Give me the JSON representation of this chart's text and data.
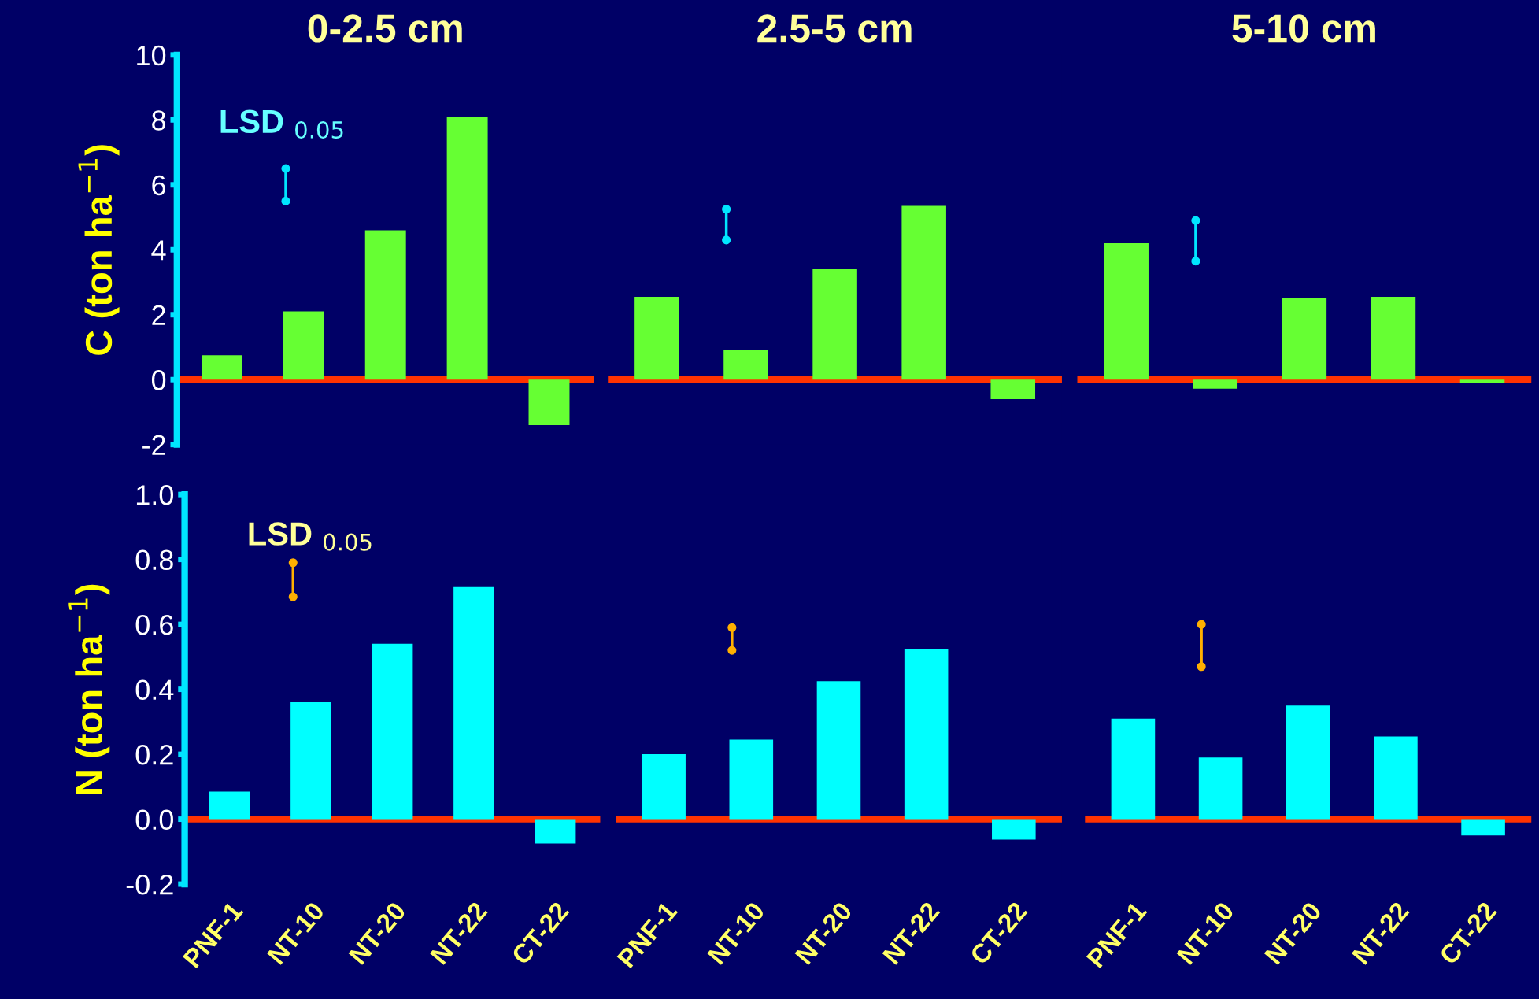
{
  "chart_data": [
    {
      "type": "bar",
      "title": "0-2.5 cm",
      "ylabel": "C (ton ha$^{−1}$)",
      "categories": [
        "PNF-1",
        "NT-10",
        "NT-20",
        "NT-22",
        "CT-22"
      ],
      "ylim": [
        -2,
        10
      ],
      "yticks": [
        -2,
        0,
        2,
        4,
        6,
        8,
        10
      ],
      "tick_labels": "y",
      "annotations": [
        "LSD $_{0.05}$"
      ],
      "ref_lines": [
        {
          "axis": "y",
          "value": 0,
          "color": "#ff3300"
        }
      ],
      "series": [
        {
          "color": "#66ff33",
          "values": [
            0.75,
            2.1,
            4.6,
            8.1,
            -1.4
          ]
        },
        {
          "type": "line",
          "color": "#00e5ff",
          "marker": "circle",
          "x": [
            "NT-10",
            "NT-10"
          ],
          "values": [
            5.5,
            6.5
          ]
        }
      ]
    },
    {
      "type": "bar",
      "title": "2.5-5 cm",
      "categories": [
        "PNF-1",
        "NT-10",
        "NT-20",
        "NT-22",
        "CT-22"
      ],
      "ylim": [
        -2,
        10
      ],
      "tick_labels": false,
      "ref_lines": [
        {
          "axis": "y",
          "value": 0,
          "color": "#ff3300"
        }
      ],
      "series": [
        {
          "color": "#66ff33",
          "values": [
            2.55,
            0.9,
            3.4,
            5.35,
            -0.6
          ]
        },
        {
          "type": "line",
          "color": "#00e5ff",
          "marker": "circle",
          "x": [
            "NT-10",
            "NT-10"
          ],
          "values": [
            4.3,
            5.25
          ]
        }
      ]
    },
    {
      "type": "bar",
      "title": "5-10 cm",
      "categories": [
        "PNF-1",
        "NT-10",
        "NT-20",
        "NT-22",
        "CT-22"
      ],
      "ylim": [
        -2,
        10
      ],
      "tick_labels": false,
      "ref_lines": [
        {
          "axis": "y",
          "value": 0,
          "color": "#ff3300"
        }
      ],
      "series": [
        {
          "color": "#66ff33",
          "values": [
            4.2,
            -0.28,
            2.5,
            2.55,
            -0.1
          ]
        },
        {
          "type": "line",
          "color": "#00e5ff",
          "marker": "circle",
          "x": [
            "NT-10",
            "NT-10"
          ],
          "values": [
            3.65,
            4.9
          ]
        }
      ]
    },
    {
      "type": "bar",
      "ylabel": "N (ton ha$^{−1}$)",
      "categories": [
        "PNF-1",
        "NT-10",
        "NT-20",
        "NT-22",
        "CT-22"
      ],
      "ylim": [
        -0.2,
        1.0
      ],
      "yticks": [
        {
          "value": -0.2,
          "label": "-0.2"
        },
        {
          "value": 0,
          "label": "0.0"
        },
        {
          "value": 0.2,
          "label": "0.2"
        },
        {
          "value": 0.4,
          "label": "0.4"
        },
        {
          "value": 0.6,
          "label": "0.6"
        },
        {
          "value": 0.8,
          "label": "0.8"
        },
        {
          "value": 1.0,
          "label": "1.0"
        }
      ],
      "annotations": [
        "LSD $_{0.05}$"
      ],
      "ref_lines": [
        {
          "axis": "y",
          "value": 0,
          "color": "#ff3300"
        }
      ],
      "series": [
        {
          "color": "#00ffff",
          "values": [
            0.085,
            0.36,
            0.54,
            0.715,
            -0.075
          ]
        },
        {
          "type": "line",
          "color": "#ffb000",
          "marker": "circle",
          "x": [
            "NT-10",
            "NT-10"
          ],
          "values": [
            0.685,
            0.79
          ]
        }
      ]
    },
    {
      "type": "bar",
      "categories": [
        "PNF-1",
        "NT-10",
        "NT-20",
        "NT-22",
        "CT-22"
      ],
      "ylim": [
        -0.2,
        1.0
      ],
      "tick_labels": "x",
      "ref_lines": [
        {
          "axis": "y",
          "value": 0,
          "color": "#ff3300"
        }
      ],
      "series": [
        {
          "color": "#00ffff",
          "values": [
            0.2,
            0.245,
            0.425,
            0.525,
            -0.063
          ]
        },
        {
          "type": "line",
          "color": "#ffb000",
          "marker": "circle",
          "x": [
            "NT-10",
            "NT-10"
          ],
          "values": [
            0.52,
            0.59
          ]
        }
      ]
    },
    {
      "type": "bar",
      "categories": [
        "PNF-1",
        "NT-10",
        "NT-20",
        "NT-22",
        "CT-22"
      ],
      "ylim": [
        -0.2,
        1.0
      ],
      "tick_labels": "x",
      "ref_lines": [
        {
          "axis": "y",
          "value": 0,
          "color": "#ff3300"
        }
      ],
      "series": [
        {
          "color": "#00ffff",
          "values": [
            0.31,
            0.19,
            0.35,
            0.255,
            -0.05
          ]
        },
        {
          "type": "line",
          "color": "#ffb000",
          "marker": "circle",
          "x": [
            "NT-10",
            "NT-10"
          ],
          "values": [
            0.47,
            0.6
          ]
        }
      ]
    }
  ]
}
